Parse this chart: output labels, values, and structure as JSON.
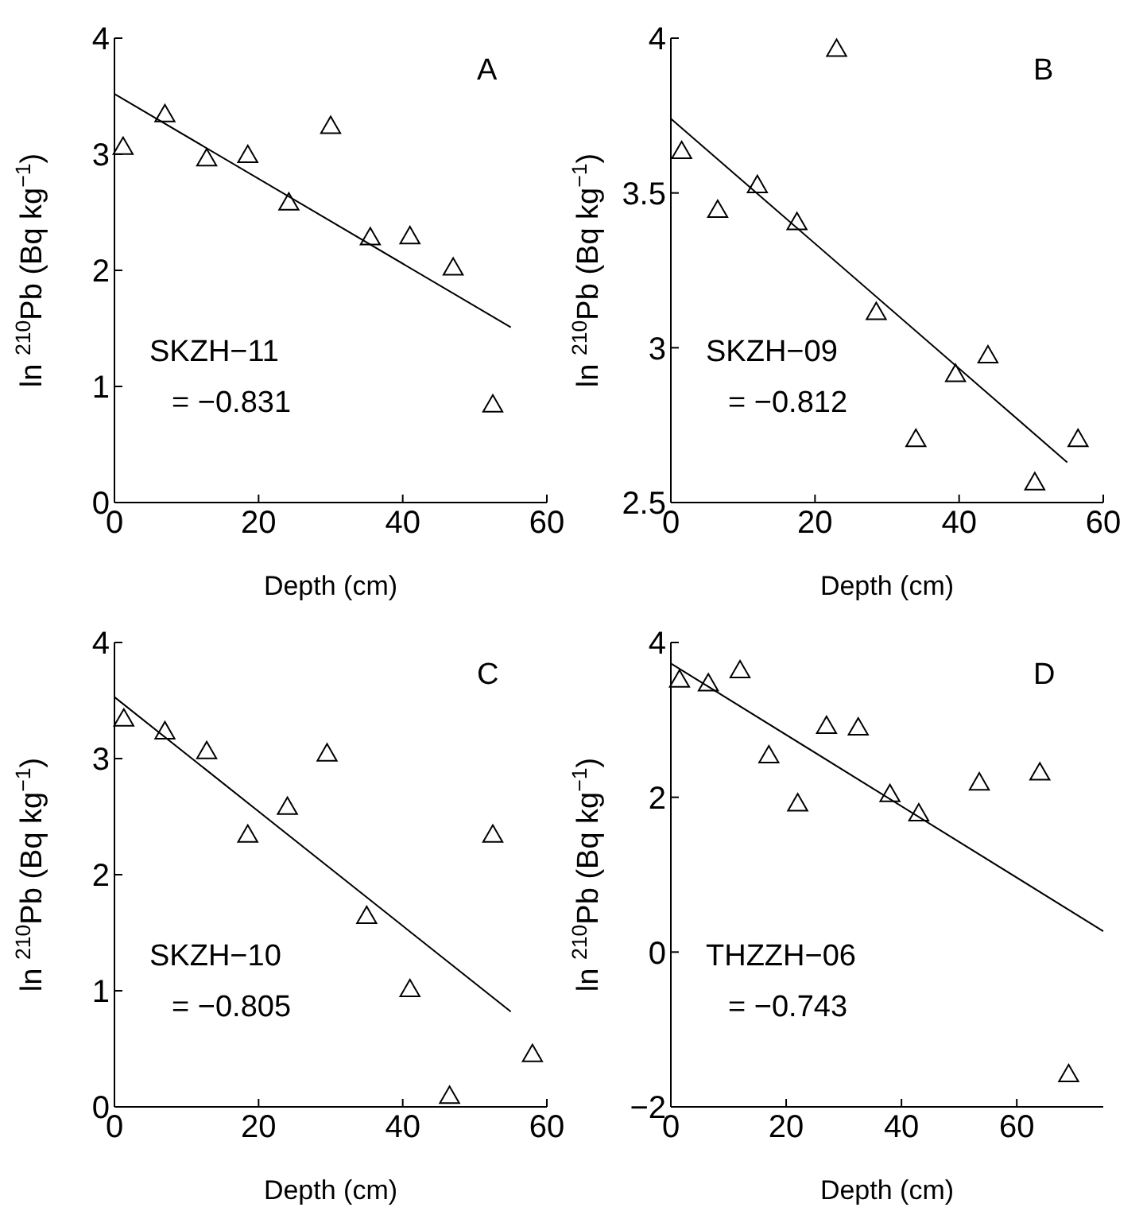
{
  "chart_data": [
    {
      "type": "scatter",
      "xlabel": "Depth (cm)",
      "ylabel": "ln $^{210}$Pb  (Bq kg$^{−1}$)",
      "annotations": [
        "A",
        "SKZH−11",
        "= −0.831"
      ],
      "xlim": [
        0,
        60
      ],
      "xticks": [
        0,
        20,
        40,
        60
      ],
      "ylim": [
        0,
        4
      ],
      "yticks": [
        0,
        1,
        2,
        3,
        4
      ],
      "grid": false,
      "marker": "triangle",
      "series": [
        {
          "type": "scatter",
          "color": "#000000",
          "x": [
            1.2,
            7,
            12.8,
            18.5,
            24.2,
            30,
            35.5,
            41,
            47,
            52.5
          ],
          "values": [
            3.05,
            3.33,
            2.95,
            2.98,
            2.57,
            3.23,
            2.27,
            2.28,
            2.01,
            0.83
          ]
        },
        {
          "type": "line",
          "color": "#000000",
          "marker": "none",
          "line_style": "solid",
          "x": [
            0,
            55
          ],
          "values": [
            3.52,
            1.51
          ]
        }
      ]
    },
    {
      "type": "scatter",
      "xlabel": "Depth (cm)",
      "ylabel": "ln $^{210}$Pb  (Bq kg$^{−1}$)",
      "annotations": [
        "B",
        "SKZH−09",
        "= −0.812"
      ],
      "xlim": [
        0,
        60
      ],
      "xticks": [
        0,
        20,
        40,
        60
      ],
      "ylim": [
        2.5,
        4
      ],
      "yticks": [
        2.5,
        3,
        3.5,
        4
      ],
      "grid": false,
      "marker": "triangle",
      "series": [
        {
          "type": "scatter",
          "color": "#000000",
          "x": [
            1.5,
            6.5,
            12,
            17.5,
            23,
            28.5,
            34,
            39.5,
            44,
            50.5,
            56.5
          ],
          "values": [
            3.63,
            3.44,
            3.52,
            3.4,
            3.96,
            3.11,
            2.7,
            2.91,
            2.97,
            2.56,
            2.7
          ]
        },
        {
          "type": "line",
          "color": "#000000",
          "marker": "none",
          "line_style": "solid",
          "x": [
            0,
            55
          ],
          "values": [
            3.74,
            2.63
          ]
        }
      ]
    },
    {
      "type": "scatter",
      "xlabel": "Depth (cm)",
      "ylabel": "ln $^{210}$Pb  (Bq kg$^{−1}$)",
      "annotations": [
        "C",
        "SKZH−10",
        "= −0.805"
      ],
      "xlim": [
        0,
        60
      ],
      "xticks": [
        0,
        20,
        40,
        60
      ],
      "ylim": [
        0,
        4
      ],
      "yticks": [
        0,
        1,
        2,
        3,
        4
      ],
      "grid": false,
      "marker": "triangle",
      "series": [
        {
          "type": "scatter",
          "color": "#000000",
          "x": [
            1.3,
            7,
            12.8,
            18.5,
            24,
            29.5,
            35,
            41,
            46.5,
            52.5,
            58
          ],
          "values": [
            3.33,
            3.22,
            3.05,
            2.33,
            2.57,
            3.03,
            1.63,
            1.0,
            0.08,
            2.33,
            0.44
          ]
        },
        {
          "type": "line",
          "color": "#000000",
          "marker": "none",
          "line_style": "solid",
          "x": [
            0,
            55
          ],
          "values": [
            3.53,
            0.82
          ]
        }
      ]
    },
    {
      "type": "scatter",
      "xlabel": "Depth (cm)",
      "ylabel": "ln $^{210}$Pb  (Bq kg$^{−1}$)",
      "annotations": [
        "D",
        "THZZH−06",
        "= −0.743"
      ],
      "xlim": [
        0,
        75
      ],
      "xticks": [
        0,
        20,
        40,
        60
      ],
      "ylim": [
        -2,
        4
      ],
      "yticks": [
        -2,
        0,
        2,
        4
      ],
      "grid": false,
      "marker": "triangle",
      "series": [
        {
          "type": "scatter",
          "color": "#000000",
          "x": [
            1.5,
            6.5,
            12,
            17,
            22,
            27,
            32.5,
            38,
            43,
            53.5,
            64,
            69
          ],
          "values": [
            3.5,
            3.45,
            3.62,
            2.52,
            1.9,
            2.9,
            2.88,
            2.02,
            1.77,
            2.17,
            2.3,
            -1.6
          ]
        },
        {
          "type": "line",
          "color": "#000000",
          "marker": "none",
          "line_style": "solid",
          "x": [
            0,
            75
          ],
          "values": [
            3.73,
            0.27
          ]
        }
      ]
    }
  ]
}
